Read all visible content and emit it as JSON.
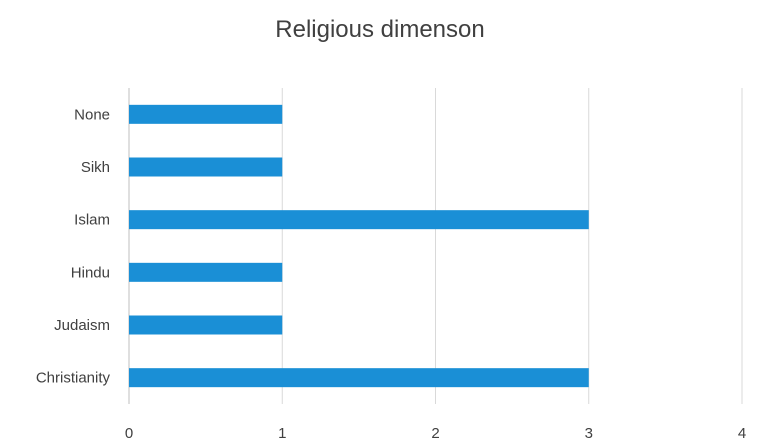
{
  "chart_data": {
    "type": "bar",
    "orientation": "horizontal",
    "title": "Religious dimenson",
    "categories": [
      "Christianity",
      "Judaism",
      "Hindu",
      "Islam",
      "Sikh",
      "None"
    ],
    "values": [
      3,
      1,
      1,
      3,
      1,
      1
    ],
    "xlim": [
      0,
      4
    ],
    "xticks": [
      "0",
      "1",
      "2",
      "3",
      "4"
    ],
    "xlabel": "",
    "ylabel": "",
    "grid": "vertical",
    "legend": "none",
    "bar_color": "#1a8fd6",
    "grid_color": "#d9d9d9"
  }
}
